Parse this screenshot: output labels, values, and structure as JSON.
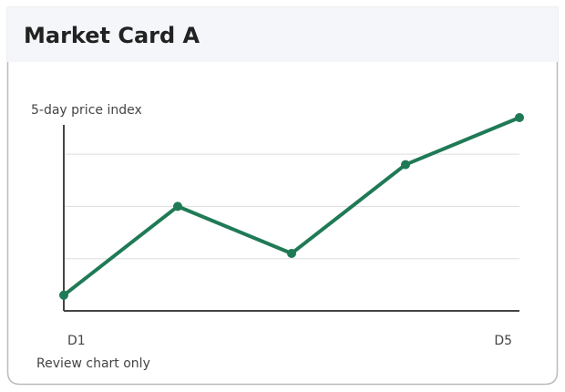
{
  "chart_data": {
    "type": "line",
    "title": "Market Card A",
    "subtitle": "5-day price index",
    "note": "Review chart only",
    "categories": [
      "D1",
      null,
      null,
      null,
      "D5"
    ],
    "values": [
      0.3,
      2.0,
      1.1,
      2.8,
      3.7
    ],
    "color": "#1f7a56",
    "ylim": [
      0,
      3.7
    ],
    "yticks": [
      1,
      2,
      3
    ],
    "grid": true
  }
}
